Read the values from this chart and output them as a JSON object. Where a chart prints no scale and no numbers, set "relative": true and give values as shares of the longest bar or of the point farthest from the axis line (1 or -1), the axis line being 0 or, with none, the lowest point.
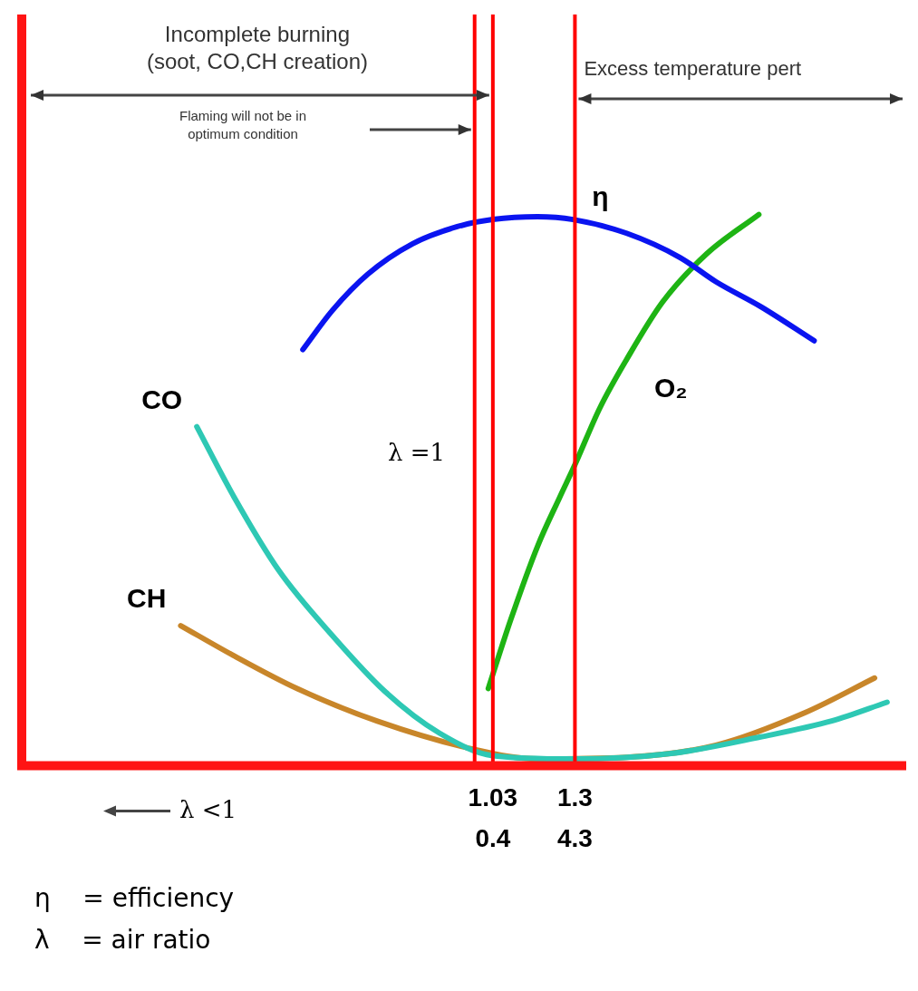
{
  "chart_data": {
    "type": "line",
    "relative": true,
    "xlim": [
      -0.52,
      2.39
    ],
    "xticks": [
      1.03,
      1.3
    ],
    "series": [
      {
        "name": "η",
        "color": "#0a14f0",
        "x": [
          0.405,
          0.502,
          0.619,
          0.766,
          0.913,
          1.03,
          1.177,
          1.294,
          1.47,
          1.646,
          1.764,
          1.911,
          2.087
        ],
        "values": [
          0.755,
          0.826,
          0.892,
          0.947,
          0.978,
          0.991,
          0.996,
          0.991,
          0.966,
          0.922,
          0.878,
          0.833,
          0.771
        ]
      },
      {
        "name": "O₂",
        "color": "#1eb414",
        "x": [
          1.015,
          1.089,
          1.177,
          1.25,
          1.3,
          1.382,
          1.47,
          1.588,
          1.734,
          1.905
        ],
        "values": [
          0.14,
          0.265,
          0.398,
          0.487,
          0.546,
          0.649,
          0.737,
          0.841,
          0.929,
          1
        ]
      },
      {
        "name": "CO",
        "color": "#2ec8b4",
        "x": [
          0.056,
          0.179,
          0.326,
          0.502,
          0.678,
          0.854,
          1.03,
          1.294,
          1.617,
          1.911,
          2.145,
          2.327
        ],
        "values": [
          0.615,
          0.487,
          0.354,
          0.236,
          0.133,
          0.059,
          0.018,
          0.012,
          0.022,
          0.052,
          0.081,
          0.115
        ]
      },
      {
        "name": "CH",
        "color": "#c8862a",
        "x": [
          0.003,
          0.179,
          0.385,
          0.648,
          0.971,
          1.177,
          1.47,
          1.764,
          2.057,
          2.286
        ],
        "values": [
          0.254,
          0.199,
          0.14,
          0.081,
          0.029,
          0.012,
          0.015,
          0.037,
          0.096,
          0.159
        ]
      }
    ],
    "ref_lines": [
      {
        "axis": "x",
        "value": 0.97,
        "color": "#ff0000"
      },
      {
        "axis": "x",
        "value": 1.03,
        "color": "#ff0000"
      },
      {
        "axis": "x",
        "value": 1.3,
        "color": "#ff0000"
      }
    ],
    "annotations": [
      "Incomplete burning\n(soot, CO,CH creation)",
      "Flaming will not be in\noptimum condition",
      "Excess temperature pert",
      "λ =1",
      "λ <1",
      "η    = efficiency",
      "λ    = air ratio",
      "0.4",
      "4.3"
    ],
    "legend": false,
    "marker": "none",
    "line_style": "solid"
  }
}
